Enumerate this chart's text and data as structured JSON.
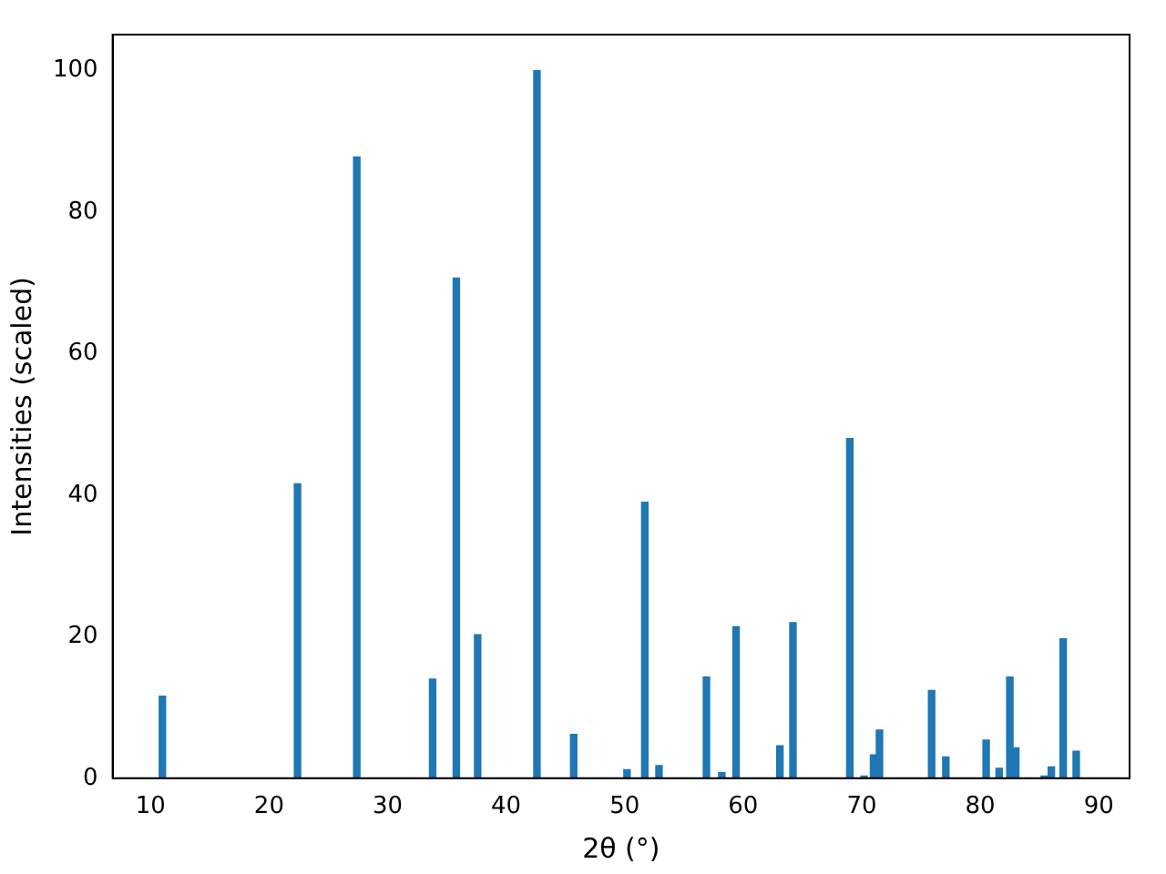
{
  "chart_data": {
    "type": "bar",
    "xlabel": "2θ (°)",
    "ylabel": "Intensities (scaled)",
    "x": [
      11.0,
      22.4,
      27.4,
      33.8,
      35.8,
      37.6,
      42.6,
      45.7,
      50.2,
      51.7,
      52.9,
      56.9,
      58.2,
      59.4,
      63.1,
      64.2,
      69.0,
      70.2,
      71.0,
      71.5,
      75.9,
      77.1,
      80.5,
      81.6,
      82.5,
      83.0,
      85.4,
      86.0,
      87.0,
      88.1
    ],
    "values": [
      11.6,
      41.6,
      87.8,
      14,
      70.7,
      20.3,
      100,
      6.2,
      1.2,
      39,
      1.8,
      14.3,
      0.8,
      21.4,
      4.6,
      22,
      48,
      0.3,
      3.3,
      6.8,
      12.4,
      3,
      5.4,
      1.4,
      14.3,
      4.3,
      0.3,
      1.6,
      19.7,
      3.8
    ],
    "color": "#1f77b4",
    "xlim": [
      6.8,
      92.6
    ],
    "ylim": [
      0,
      105.1
    ],
    "xticks": [
      10,
      20,
      30,
      40,
      50,
      60,
      70,
      80,
      90
    ],
    "yticks": [
      0,
      20,
      40,
      60,
      80,
      100
    ],
    "grid": false,
    "legend": false
  }
}
